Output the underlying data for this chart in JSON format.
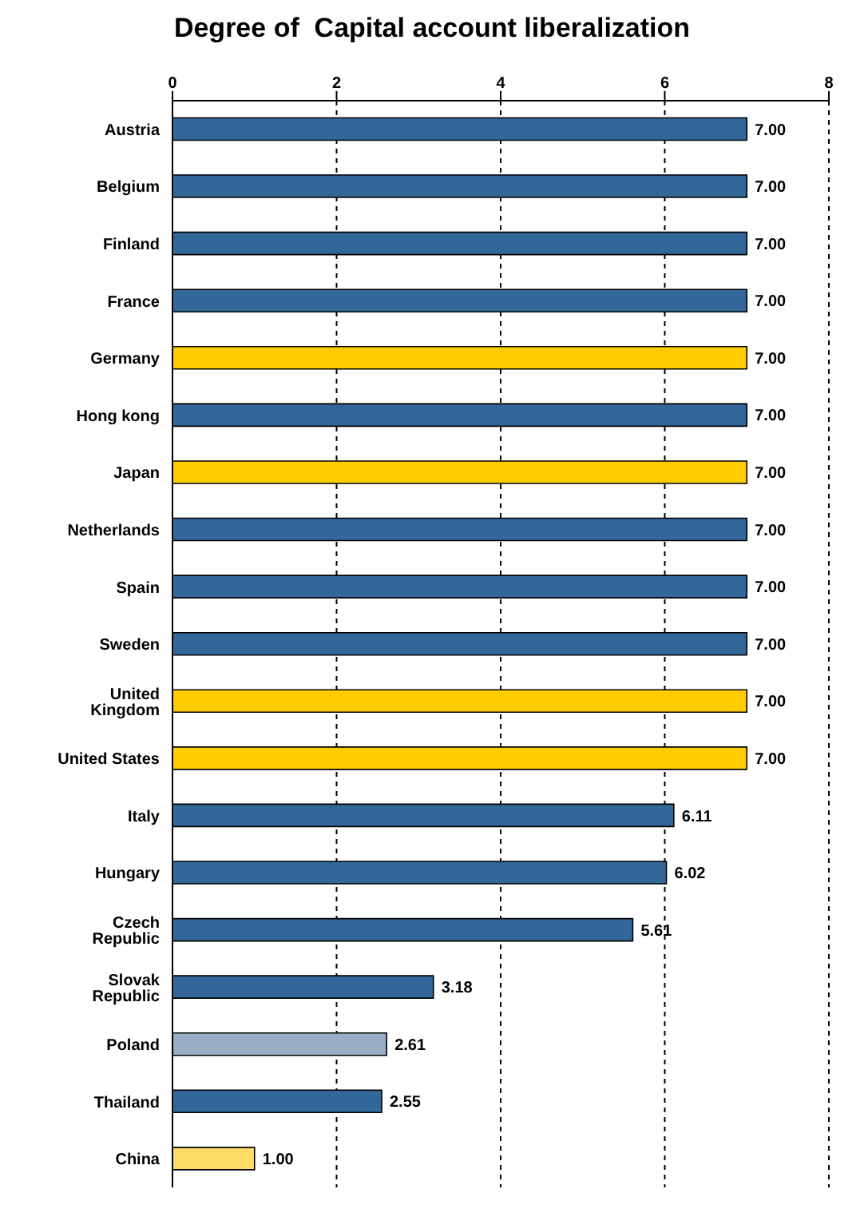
{
  "chart_data": {
    "type": "bar",
    "orientation": "horizontal",
    "title": "Degree of  Capital account liberalization",
    "categories": [
      "Austria",
      "Belgium",
      "Finland",
      "France",
      "Germany",
      "Hong kong",
      "Japan",
      "Netherlands",
      "Spain",
      "Sweden",
      "United Kingdom",
      "United States",
      "Italy",
      "Hungary",
      "Czech Republic",
      "Slovak Republic",
      "Poland",
      "Thailand",
      "China"
    ],
    "values": [
      7,
      7,
      7,
      7,
      7,
      7,
      7,
      7,
      7,
      7,
      7,
      7,
      6.11,
      6.02,
      5.61,
      3.18,
      2.61,
      2.55,
      1
    ],
    "value_labels": [
      "7.00",
      "7.00",
      "7.00",
      "7.00",
      "7.00",
      "7.00",
      "7.00",
      "7.00",
      "7.00",
      "7.00",
      "7.00",
      "7.00",
      "6.11",
      "6.02",
      "5.61",
      "3.18",
      "2.61",
      "2.55",
      "1.00"
    ],
    "colors": [
      "#336699",
      "#336699",
      "#336699",
      "#336699",
      "#ffcc00",
      "#336699",
      "#ffcc00",
      "#336699",
      "#336699",
      "#336699",
      "#ffcc00",
      "#ffcc00",
      "#336699",
      "#336699",
      "#336699",
      "#336699",
      "#99adc6",
      "#336699",
      "#ffdd66"
    ],
    "xlim": [
      0,
      8
    ],
    "xticks": [
      0,
      2,
      4,
      6,
      8
    ],
    "grid": "x"
  }
}
